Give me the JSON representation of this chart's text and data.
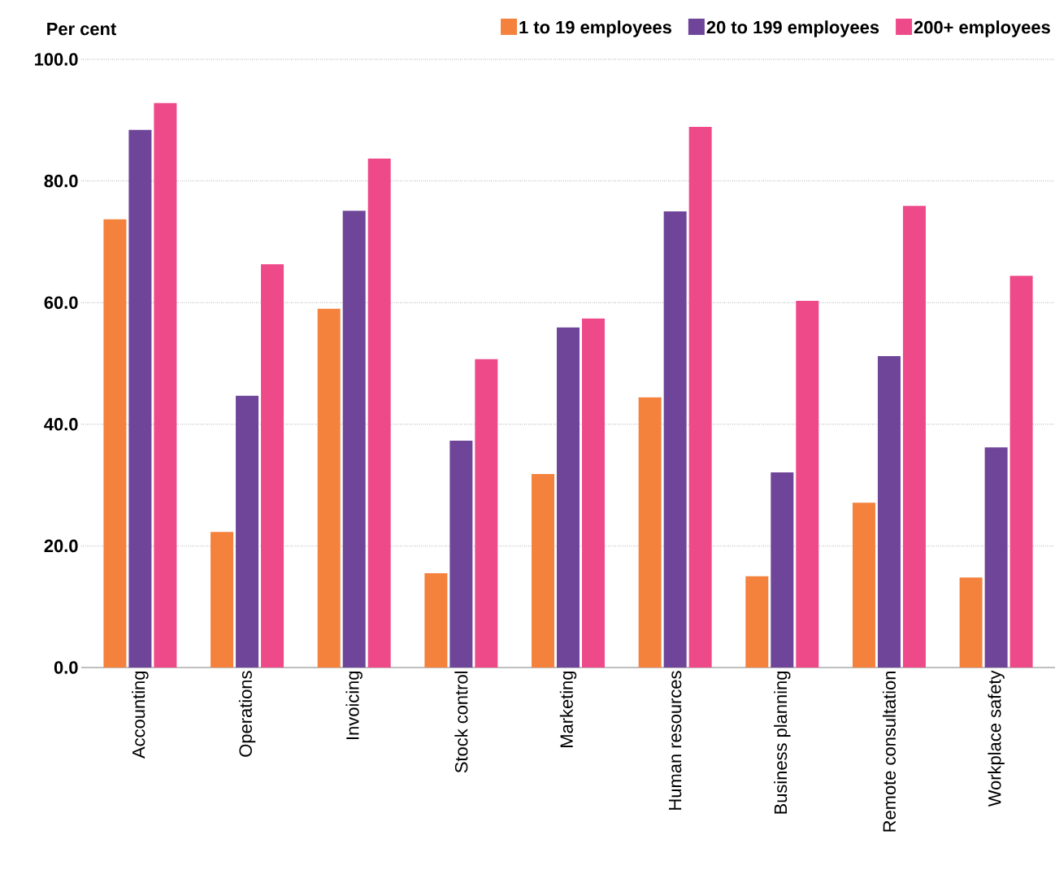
{
  "chart_data": {
    "type": "bar",
    "ylabel": "Per cent",
    "categories": [
      "Accounting",
      "Operations",
      "Invoicing",
      "Stock control",
      "Marketing",
      "Human resources",
      "Business planning",
      "Remote consultation",
      "Workplace safety"
    ],
    "series": [
      {
        "name": "1 to 19 employees",
        "color": "#f4813c",
        "values": [
          73.7,
          22.3,
          59.0,
          15.5,
          31.8,
          44.4,
          15.0,
          27.1,
          14.8
        ]
      },
      {
        "name": "20 to 199 employees",
        "color": "#6e4599",
        "values": [
          88.4,
          44.7,
          75.1,
          37.3,
          55.9,
          75.0,
          32.1,
          51.2,
          36.2
        ]
      },
      {
        "name": "200+ employees",
        "color": "#ee4a8a",
        "values": [
          92.8,
          66.3,
          83.7,
          50.7,
          57.4,
          88.9,
          60.3,
          75.9,
          64.4
        ]
      }
    ],
    "ylim": [
      0,
      100
    ],
    "yticks": [
      {
        "value": 0,
        "label": "0.0"
      },
      {
        "value": 20,
        "label": "20.0"
      },
      {
        "value": 40,
        "label": "40.0"
      },
      {
        "value": 60,
        "label": "60.0"
      },
      {
        "value": 80,
        "label": "80.0"
      },
      {
        "value": 100,
        "label": "100.0"
      }
    ],
    "grid": "y",
    "legend": "top right"
  }
}
